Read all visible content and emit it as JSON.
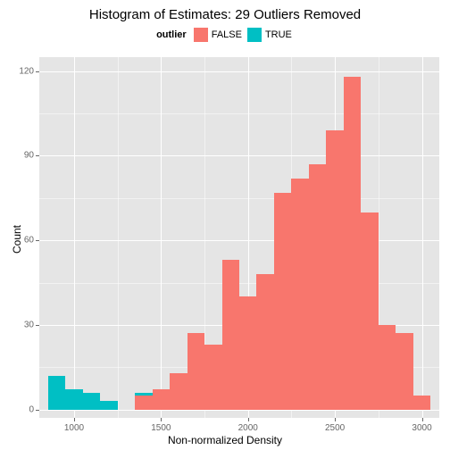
{
  "title": "Histogram of Estimates: 29 Outliers Removed",
  "legend": {
    "title": "outlier",
    "items": [
      {
        "label": "FALSE",
        "color": "#f8766d"
      },
      {
        "label": "TRUE",
        "color": "#00bfc4"
      }
    ]
  },
  "chart": {
    "type": "histogram",
    "xlabel": "Non-normalized Density",
    "ylabel": "Count",
    "background_color": "#e5e5e5",
    "grid_color": "#ffffff",
    "xlim": [
      800,
      3100
    ],
    "ylim": [
      -3,
      125
    ],
    "xticks": [
      1000,
      1500,
      2000,
      2500,
      3000
    ],
    "yticks": [
      0,
      30,
      60,
      90,
      120
    ],
    "xminor": [
      1250,
      1750,
      2250,
      2750
    ],
    "yminor": [
      15,
      45,
      75,
      105
    ],
    "bin_width": 100,
    "series": {
      "TRUE": {
        "color": "#00bfc4",
        "bins": [
          {
            "x": 900,
            "count": 12
          },
          {
            "x": 1000,
            "count": 7
          },
          {
            "x": 1100,
            "count": 6
          },
          {
            "x": 1200,
            "count": 3
          },
          {
            "x": 1300,
            "count": 0
          },
          {
            "x": 1400,
            "count": 1
          }
        ]
      },
      "FALSE": {
        "color": "#f8766d",
        "bins": [
          {
            "x": 1400,
            "count": 5
          },
          {
            "x": 1500,
            "count": 7
          },
          {
            "x": 1600,
            "count": 13
          },
          {
            "x": 1700,
            "count": 27
          },
          {
            "x": 1800,
            "count": 23
          },
          {
            "x": 1900,
            "count": 53
          },
          {
            "x": 2000,
            "count": 40
          },
          {
            "x": 2100,
            "count": 48
          },
          {
            "x": 2200,
            "count": 77
          },
          {
            "x": 2300,
            "count": 82
          },
          {
            "x": 2400,
            "count": 87
          },
          {
            "x": 2500,
            "count": 99
          },
          {
            "x": 2600,
            "count": 118
          },
          {
            "x": 2700,
            "count": 70
          },
          {
            "x": 2800,
            "count": 30
          },
          {
            "x": 2900,
            "count": 27
          },
          {
            "x": 3000,
            "count": 5
          }
        ]
      }
    },
    "label_fontsize": 12,
    "tick_fontsize": 10,
    "title_fontsize": 15
  }
}
